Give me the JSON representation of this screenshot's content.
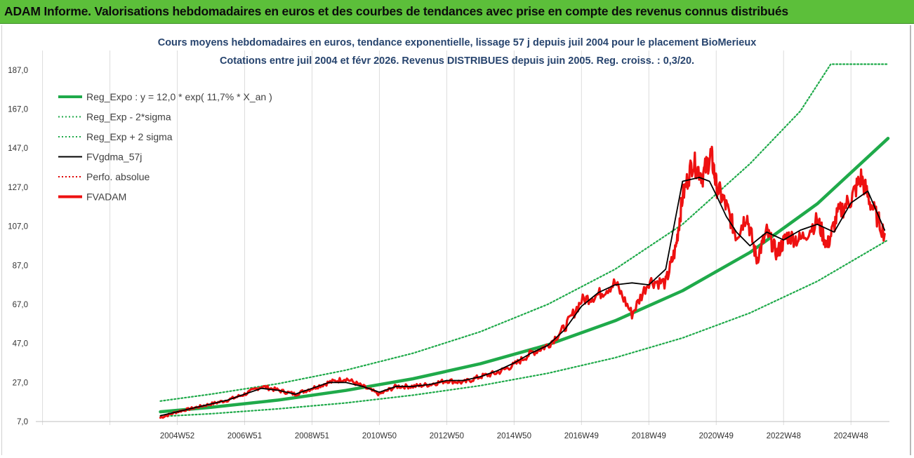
{
  "banner": {
    "title": "ADAM Informe. Valorisations hebdomadaires en euros et des courbes de tendances avec prise en compte des revenus connus distribués"
  },
  "chart_data": {
    "type": "line",
    "title_line1": "Cours moyens hebdomadaires en euros, tendance exponentielle, lissage 57 j depuis juil 2004 pour le placement BioMerieux",
    "title_line2": "Cotations entre juil 2004 et févr 2026. Revenus DISTRIBUES depuis juin 2005. Reg. croiss. : 0,3/20.",
    "ylim": [
      7,
      197
    ],
    "yticks": [
      "7,0",
      "27,0",
      "47,0",
      "67,0",
      "87,0",
      "107,0",
      "127,0",
      "147,0",
      "167,0",
      "187,0"
    ],
    "yticks_values": [
      7,
      27,
      47,
      67,
      87,
      107,
      127,
      147,
      167,
      187
    ],
    "xlim": [
      2000.8,
      2026.1
    ],
    "xticks": [
      "2004W52",
      "2006W51",
      "2008W51",
      "2010W50",
      "2012W50",
      "2014W50",
      "2016W49",
      "2018W49",
      "2020W49",
      "2022W48",
      "2024W48"
    ],
    "xticks_values": [
      2005.0,
      2007.0,
      2009.0,
      2011.0,
      2013.0,
      2015.0,
      2017.0,
      2019.0,
      2021.0,
      2023.0,
      2025.0
    ],
    "vgrid_values": [
      2001.0,
      2003.0,
      2005.0,
      2007.0,
      2009.0,
      2011.0,
      2013.0,
      2015.0,
      2017.0,
      2019.0,
      2021.0,
      2023.0,
      2025.0
    ],
    "x_start": 2004.5,
    "x_end": 2026.1,
    "grid": "vertical",
    "legend_position": "top-left",
    "legend": [
      {
        "label": "Reg_Expo : y = 12,0 * exp( 11,7% *  X_an )",
        "color": "#1faa4a",
        "style": "solid-thick"
      },
      {
        "label": "Reg_Exp - 2*sigma",
        "color": "#1faa4a",
        "style": "dotted"
      },
      {
        "label": "Reg_Exp + 2 sigma",
        "color": "#1faa4a",
        "style": "dotted"
      },
      {
        "label": "FVgdma_57j",
        "color": "#000000",
        "style": "solid"
      },
      {
        "label": "Perfo. absolue",
        "color": "#e00000",
        "style": "dotted"
      },
      {
        "label": "FVADAM",
        "color": "#ee1111",
        "style": "solid-thick"
      }
    ],
    "series": [
      {
        "name": "Reg_Expo : y = 12,0 * exp( 11,7% *  X_an )",
        "color": "#1faa4a",
        "x": [
          2004.5,
          2006,
          2008,
          2010,
          2012,
          2014,
          2016,
          2018,
          2020,
          2022,
          2024,
          2026.1
        ],
        "values": [
          12.0,
          14.3,
          18.0,
          22.9,
          28.9,
          36.6,
          46.3,
          58.6,
          74.0,
          93.6,
          118.5,
          152.0
        ]
      },
      {
        "name": "Reg_Exp - 2*sigma",
        "color": "#1faa4a",
        "x": [
          2004.5,
          2006,
          2008,
          2010,
          2012,
          2014,
          2016,
          2018,
          2020,
          2022,
          2024,
          2026.1
        ],
        "values": [
          9.6,
          11.0,
          13.5,
          16.5,
          20.5,
          25.4,
          31.7,
          39.7,
          49.8,
          62.6,
          78.8,
          100.0
        ]
      },
      {
        "name": "Reg_Exp + 2 sigma",
        "color": "#1faa4a",
        "x": [
          2004.5,
          2006,
          2008,
          2010,
          2012,
          2014,
          2016,
          2018,
          2020,
          2022,
          2023.5,
          2024.4,
          2026.1
        ],
        "values": [
          17.5,
          21.0,
          26.4,
          33.3,
          42.0,
          53.0,
          67.0,
          85.0,
          108.0,
          139.0,
          166.0,
          190.0,
          190.0
        ]
      },
      {
        "name": "FVgdma_57j",
        "color": "#000000",
        "x": [
          2004.5,
          2005.0,
          2005.5,
          2006.0,
          2006.5,
          2007.0,
          2007.5,
          2008.0,
          2008.5,
          2009.0,
          2009.5,
          2010.0,
          2010.5,
          2011.0,
          2011.5,
          2012.0,
          2012.5,
          2013.0,
          2013.5,
          2014.0,
          2014.5,
          2015.0,
          2015.5,
          2016.0,
          2016.5,
          2017.0,
          2017.5,
          2018.0,
          2018.5,
          2019.0,
          2019.5,
          2020.0,
          2020.5,
          2020.8,
          2021.0,
          2021.3,
          2021.6,
          2022.0,
          2022.5,
          2023.0,
          2023.5,
          2024.0,
          2024.5,
          2025.0,
          2025.5,
          2026.0
        ],
        "values": [
          10,
          12,
          14,
          16,
          18,
          21,
          24,
          23,
          21,
          24,
          27,
          27,
          25,
          22,
          25,
          25,
          26,
          28,
          28,
          30,
          33,
          37,
          42,
          46,
          54,
          66,
          73,
          77,
          78,
          77,
          85,
          130,
          132,
          130,
          123,
          112,
          104,
          97,
          104,
          100,
          105,
          108,
          104,
          119,
          125,
          105
        ]
      },
      {
        "name": "FVADAM",
        "color": "#ee1111",
        "x": [
          2004.5,
          2005.0,
          2005.5,
          2006.0,
          2006.5,
          2007.0,
          2007.5,
          2008.0,
          2008.5,
          2009.0,
          2009.5,
          2010.0,
          2010.5,
          2011.0,
          2011.5,
          2012.0,
          2012.5,
          2013.0,
          2013.5,
          2014.0,
          2014.5,
          2015.0,
          2015.5,
          2016.0,
          2016.5,
          2017.0,
          2017.5,
          2018.0,
          2018.5,
          2019.0,
          2019.5,
          2019.8,
          2020.0,
          2020.3,
          2020.6,
          2020.85,
          2021.0,
          2021.3,
          2021.6,
          2021.9,
          2022.2,
          2022.5,
          2022.8,
          2023.1,
          2023.5,
          2024.0,
          2024.3,
          2024.6,
          2025.0,
          2025.3,
          2025.6,
          2026.0
        ],
        "values": [
          9,
          12,
          14,
          16,
          18,
          21,
          25,
          23,
          21,
          24,
          27,
          29,
          25,
          21,
          25,
          25,
          26,
          28,
          27,
          30,
          32,
          36,
          42,
          46,
          55,
          69,
          72,
          78,
          62,
          79,
          78,
          96,
          122,
          140,
          133,
          144,
          128,
          117,
          102,
          113,
          90,
          104,
          93,
          102,
          100,
          110,
          97,
          113,
          121,
          132,
          118,
          103
        ]
      }
    ]
  }
}
